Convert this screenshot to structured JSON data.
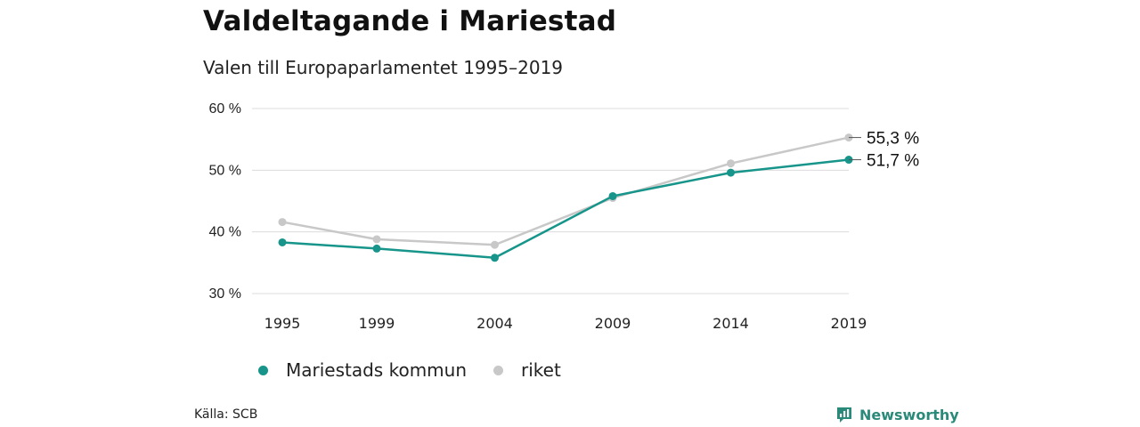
{
  "title": "Valdeltagande i Mariestad",
  "subtitle": "Valen till Europaparlamentet 1995–2019",
  "source": "Källa: SCB",
  "brand": "Newsworthy",
  "colors": {
    "mariestad": "#17958a",
    "riket": "#c8c8c8",
    "grid": "#dcdcdc",
    "brand": "#2a8a7a"
  },
  "chart_data": {
    "type": "line",
    "title": "Valdeltagande i Mariestad",
    "subtitle": "Valen till Europaparlamentet 1995–2019",
    "xlabel": "",
    "ylabel": "",
    "x": [
      1995,
      1999,
      2004,
      2009,
      2014,
      2019
    ],
    "ylim": [
      30,
      60
    ],
    "yticks": [
      30,
      40,
      50,
      60
    ],
    "ytick_labels": [
      "30 %",
      "40 %",
      "50 %",
      "60 %"
    ],
    "xtick_labels": [
      "1995",
      "1999",
      "2004",
      "2009",
      "2014",
      "2019"
    ],
    "grid": true,
    "legend_position": "bottom",
    "series": [
      {
        "name": "riket",
        "color_key": "riket",
        "values": [
          41.6,
          38.8,
          37.9,
          45.5,
          51.1,
          55.3
        ],
        "end_label": "55,3 %"
      },
      {
        "name": "Mariestads kommun",
        "color_key": "mariestad",
        "values": [
          38.3,
          37.3,
          35.8,
          45.8,
          49.6,
          51.7
        ],
        "end_label": "51,7 %"
      }
    ],
    "legend_order": [
      "Mariestads kommun",
      "riket"
    ]
  }
}
